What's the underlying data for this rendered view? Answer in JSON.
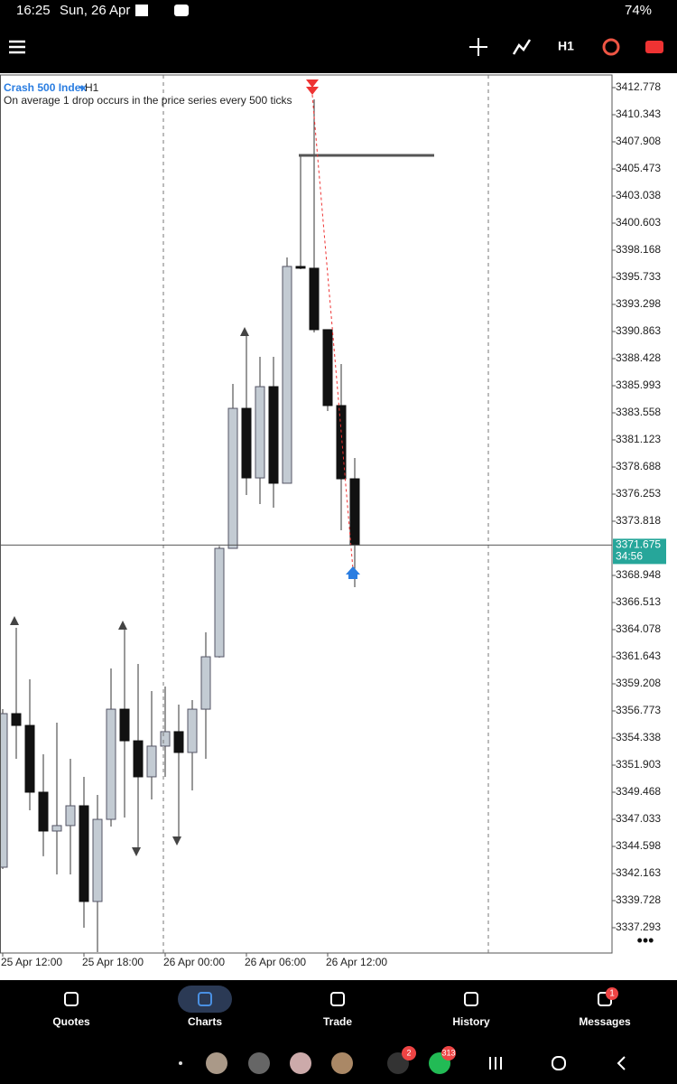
{
  "status_bar": {
    "time": "16:25",
    "date": "Sun, 26 Apr",
    "battery": "74%"
  },
  "toolbar": {
    "timeframe": "H1"
  },
  "chart_data": {
    "type": "candlestick",
    "symbol": "Crash 500 Index",
    "timeframe": "H1",
    "description": "On average 1 drop occurs in the price series every 500 ticks",
    "categories": [
      "25 Apr 12:00",
      null,
      null,
      null,
      null,
      null,
      "25 Apr 18:00",
      null,
      null,
      null,
      null,
      null,
      "26 Apr 00:00",
      null,
      null,
      null,
      null,
      null,
      "26 Apr 06:00",
      null,
      null,
      null,
      null,
      null,
      "26 Apr 12:00",
      null,
      null
    ],
    "open": [
      3342.73,
      3356.53,
      3355.47,
      3349.47,
      3345.98,
      3346.47,
      3348.25,
      3339.65,
      3347.03,
      3356.93,
      3354.09,
      3350.85,
      3353.61,
      3354.91,
      3353.04,
      3356.93,
      3361.64,
      3371.38,
      3383.96,
      3377.71,
      3385.91,
      3377.23,
      3396.71,
      3396.55,
      3391.03,
      3384.21,
      3377.63
    ],
    "high": [
      3356.93,
      3364.24,
      3359.61,
      3352.88,
      3355.72,
      3352.47,
      3350.85,
      3349.22,
      3360.59,
      3364.48,
      3360.99,
      3358.56,
      3358.96,
      3357.34,
      3357.75,
      3363.83,
      3371.59,
      3386.16,
      3390.62,
      3388.59,
      3388.59,
      3397.52,
      3406.69,
      3411.72,
      3391.03,
      3387.94,
      3379.5
    ],
    "low": [
      3342.57,
      3352.47,
      3347.84,
      3343.71,
      3342.08,
      3342.08,
      3337.29,
      3335.1,
      3346.38,
      3347.2,
      3344.35,
      3348.82,
      3350.85,
      3345.17,
      3349.63,
      3352.47,
      3361.56,
      3371.38,
      3376.17,
      3375.36,
      3375.04,
      3377.23,
      3396.46,
      3390.78,
      3383.72,
      3373.01,
      3367.89
    ],
    "close": [
      3356.53,
      3355.47,
      3349.47,
      3345.98,
      3346.47,
      3348.25,
      3339.65,
      3347.03,
      3356.93,
      3354.09,
      3350.85,
      3353.61,
      3354.91,
      3353.04,
      3356.93,
      3361.64,
      3371.38,
      3383.96,
      3377.71,
      3385.91,
      3377.23,
      3396.71,
      3396.55,
      3391.03,
      3384.21,
      3377.63,
      3371.675
    ],
    "up_color": "#c3cbd3",
    "down_color": "#111111",
    "ylim": [
      3335.02,
      3413.914
    ],
    "yticks": [
      3412.778,
      3410.343,
      3407.908,
      3405.473,
      3403.038,
      3400.603,
      3398.168,
      3395.733,
      3393.298,
      3390.863,
      3388.428,
      3385.993,
      3383.558,
      3381.123,
      3378.688,
      3376.253,
      3373.818,
      3368.948,
      3366.513,
      3364.078,
      3361.643,
      3359.208,
      3356.773,
      3354.338,
      3351.903,
      3349.468,
      3347.033,
      3344.598,
      3342.163,
      3339.728,
      3337.293
    ],
    "last_price": 3371.675,
    "timer": "34:56"
  },
  "bottom_nav": {
    "items": [
      "Quotes",
      "Charts",
      "Trade",
      "History",
      "Messages"
    ],
    "messages_badge": "1"
  },
  "taskbar": {
    "badges": [
      "2",
      "313"
    ]
  }
}
